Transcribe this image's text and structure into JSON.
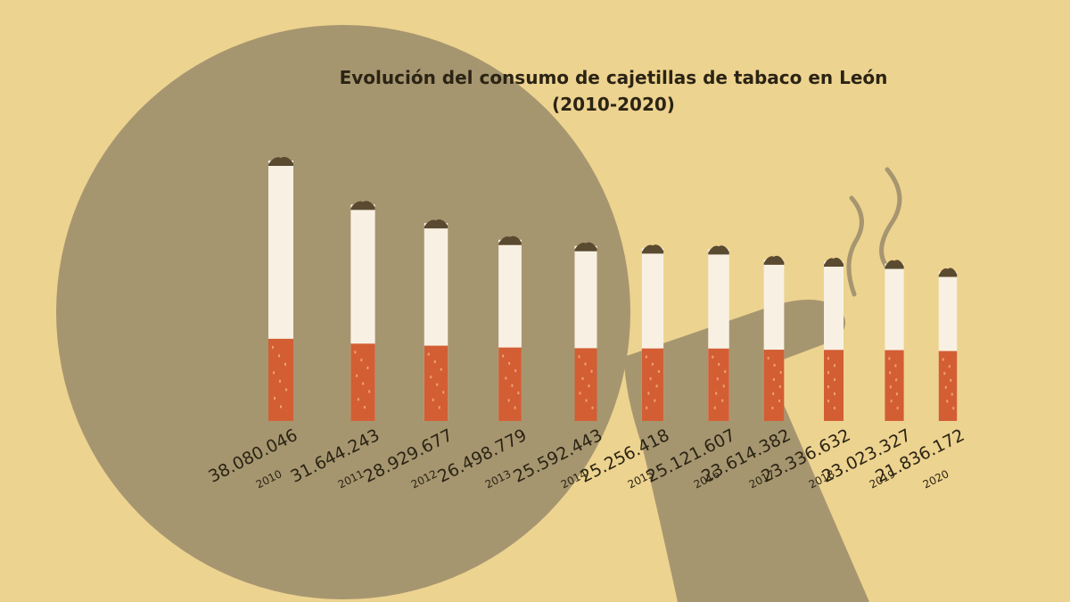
{
  "chart_data": {
    "type": "bar",
    "title": "Evolución del consumo de cajetillas de tabaco  en León",
    "subtitle": "(2010-2020)",
    "categories": [
      "2010",
      "2011",
      "2012",
      "2013",
      "2014",
      "2015",
      "2016",
      "2017",
      "2018",
      "2019",
      "2020"
    ],
    "values": [
      38080046,
      31644243,
      28929677,
      26498779,
      25592443,
      25256418,
      25121607,
      23614382,
      23336632,
      23023327,
      21836172
    ],
    "value_labels": [
      "38.080.046",
      "31.644.243",
      "28.929.677",
      "26.498.779",
      "25.592.443",
      "25.256.418",
      "25.121.607",
      "23.614.382",
      "23.336.632",
      "23.023.327",
      "21.836.172"
    ],
    "color": "#f8f1e3"
  }
}
